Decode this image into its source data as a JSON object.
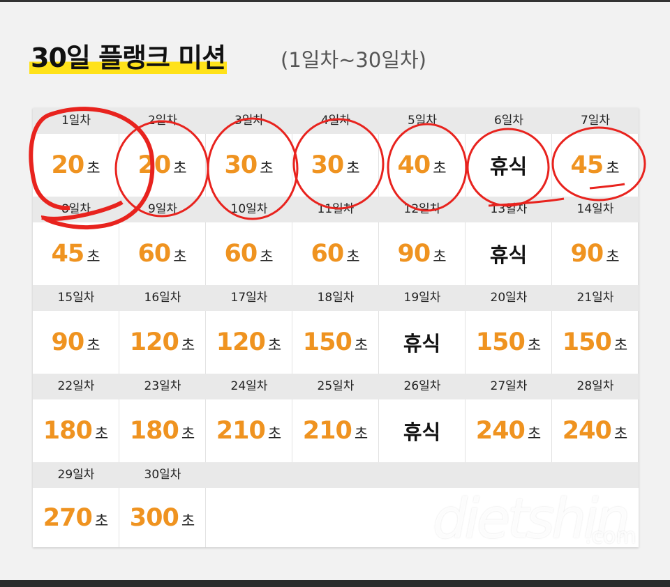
{
  "header": {
    "title": "30일 플랭크 미션",
    "subtitle": "(1일차~30일차)"
  },
  "table": {
    "days": [
      {
        "label": "1일차",
        "value": "20",
        "unit": "초"
      },
      {
        "label": "2일차",
        "value": "20",
        "unit": "초"
      },
      {
        "label": "3일차",
        "value": "30",
        "unit": "초"
      },
      {
        "label": "4일차",
        "value": "30",
        "unit": "초"
      },
      {
        "label": "5일차",
        "value": "40",
        "unit": "초"
      },
      {
        "label": "6일차",
        "value": "휴식"
      },
      {
        "label": "7일차",
        "value": "45",
        "unit": "초"
      },
      {
        "label": "8일차",
        "value": "45",
        "unit": "초"
      },
      {
        "label": "9일차",
        "value": "60",
        "unit": "초"
      },
      {
        "label": "10일차",
        "value": "60",
        "unit": "초"
      },
      {
        "label": "11일차",
        "value": "60",
        "unit": "초"
      },
      {
        "label": "12일차",
        "value": "90",
        "unit": "초"
      },
      {
        "label": "13일차",
        "value": "휴식"
      },
      {
        "label": "14일차",
        "value": "90",
        "unit": "초"
      },
      {
        "label": "15일차",
        "value": "90",
        "unit": "초"
      },
      {
        "label": "16일차",
        "value": "120",
        "unit": "초"
      },
      {
        "label": "17일차",
        "value": "120",
        "unit": "초"
      },
      {
        "label": "18일차",
        "value": "150",
        "unit": "초"
      },
      {
        "label": "19일차",
        "value": "휴식"
      },
      {
        "label": "20일차",
        "value": "150",
        "unit": "초"
      },
      {
        "label": "21일차",
        "value": "150",
        "unit": "초"
      },
      {
        "label": "22일차",
        "value": "180",
        "unit": "초"
      },
      {
        "label": "23일차",
        "value": "180",
        "unit": "초"
      },
      {
        "label": "24일차",
        "value": "210",
        "unit": "초"
      },
      {
        "label": "25일차",
        "value": "210",
        "unit": "초"
      },
      {
        "label": "26일차",
        "value": "휴식"
      },
      {
        "label": "27일차",
        "value": "240",
        "unit": "초"
      },
      {
        "label": "28일차",
        "value": "240",
        "unit": "초"
      },
      {
        "label": "29일차",
        "value": "270",
        "unit": "초"
      },
      {
        "label": "30일차",
        "value": "300",
        "unit": "초"
      }
    ]
  },
  "watermark": {
    "name": "dietshin",
    "domain": ".com"
  }
}
